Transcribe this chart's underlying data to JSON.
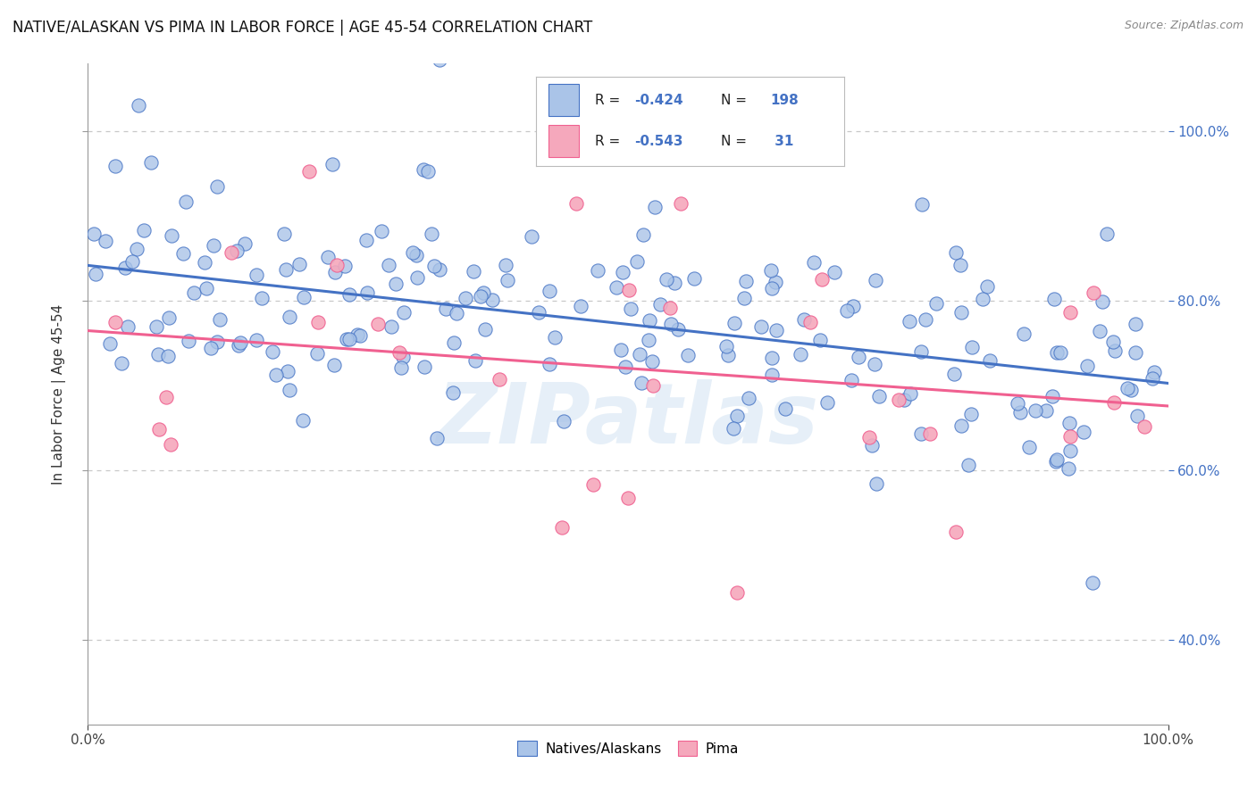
{
  "title": "NATIVE/ALASKAN VS PIMA IN LABOR FORCE | AGE 45-54 CORRELATION CHART",
  "source_text": "Source: ZipAtlas.com",
  "ylabel": "In Labor Force | Age 45-54",
  "xlim": [
    0.0,
    1.0
  ],
  "ylim": [
    0.3,
    1.08
  ],
  "xtick_positions": [
    0.0,
    1.0
  ],
  "xtick_labels": [
    "0.0%",
    "100.0%"
  ],
  "ytick_values": [
    0.4,
    0.6,
    0.8,
    1.0
  ],
  "ytick_labels": [
    "40.0%",
    "60.0%",
    "80.0%",
    "100.0%"
  ],
  "native_color": "#aac4e8",
  "pima_color": "#f5a8bc",
  "native_line_color": "#4472c4",
  "pima_line_color": "#f06090",
  "R_native": -0.424,
  "N_native": 198,
  "R_pima": -0.543,
  "N_pima": 31,
  "watermark": "ZIPatlas",
  "background_color": "#ffffff",
  "grid_color": "#c8c8c8",
  "legend_label_native": "Natives/Alaskans",
  "legend_label_pima": "Pima",
  "title_fontsize": 12,
  "axis_label_fontsize": 11,
  "legend_fontsize": 11,
  "right_tick_color": "#4472c4",
  "native_seed": 42,
  "pima_seed": 7,
  "legend_text_color": "#4472c4"
}
